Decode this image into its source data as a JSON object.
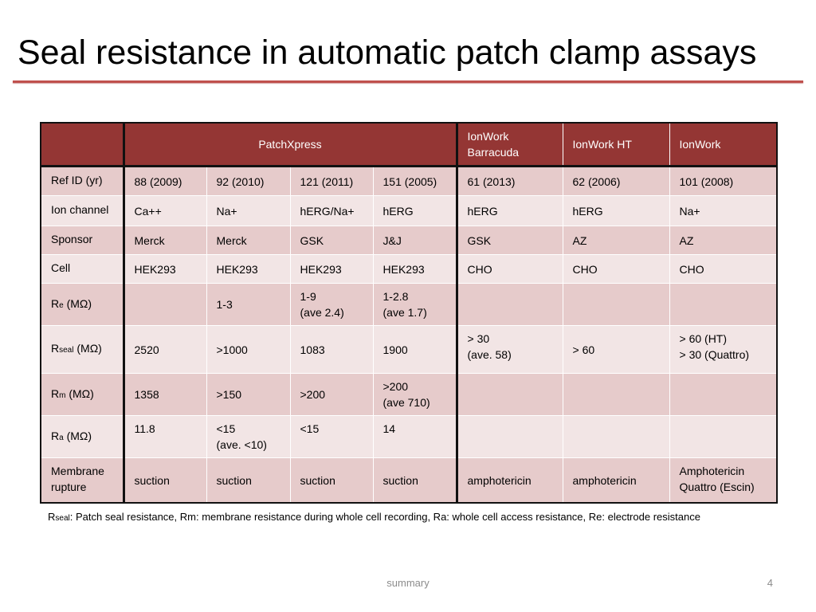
{
  "slide": {
    "title": "Seal resistance in automatic patch clamp assays",
    "footer_center": "summary",
    "page_number": "4"
  },
  "colors": {
    "title_rule": "#c0504d",
    "header_fill": "#943634",
    "row_dark": "#e6cbcb",
    "row_light": "#f2e5e5"
  },
  "table": {
    "header": {
      "blank": "",
      "patchxpress": "PatchXpress",
      "ionwork_barracuda": "IonWork\nBarracuda",
      "ionwork_ht": "IonWork HT",
      "ionwork": "IonWork"
    },
    "rows": [
      {
        "label_main": "Ref ID (yr)",
        "label_sub": "",
        "label_unit": "",
        "cells": [
          "88 (2009)",
          "92 (2010)",
          "121 (2011)",
          "151 (2005)",
          "61 (2013)",
          "62 (2006)",
          "101 (2008)"
        ]
      },
      {
        "label_main": "Ion channel",
        "label_sub": "",
        "label_unit": "",
        "cells": [
          "Ca++",
          "Na+",
          "hERG/Na+",
          "hERG",
          "hERG",
          "hERG",
          "Na+"
        ]
      },
      {
        "label_main": "Sponsor",
        "label_sub": "",
        "label_unit": "",
        "cells": [
          "Merck",
          "Merck",
          "GSK",
          "J&J",
          "GSK",
          "AZ",
          "AZ"
        ]
      },
      {
        "label_main": "Cell",
        "label_sub": "",
        "label_unit": "",
        "cells": [
          "HEK293",
          "HEK293",
          "HEK293",
          "HEK293",
          "CHO",
          "CHO",
          "CHO"
        ]
      },
      {
        "label_main": "R",
        "label_sub": "e",
        "label_unit": " (MΩ)",
        "cells": [
          "",
          "1-3",
          "1-9\n(ave 2.4)",
          "1-2.8\n(ave 1.7)",
          "",
          "",
          ""
        ]
      },
      {
        "label_main": "R",
        "label_sub": "seal",
        "label_unit": " (MΩ)",
        "cells": [
          "2520",
          ">1000",
          "1083",
          "1900",
          "> 30\n(ave. 58)",
          "> 60",
          "> 60 (HT)\n> 30 (Quattro)"
        ]
      },
      {
        "label_main": "R",
        "label_sub": "m",
        "label_unit": " (MΩ)",
        "cells": [
          "1358",
          ">150",
          ">200",
          ">200\n(ave 710)",
          "",
          "",
          ""
        ]
      },
      {
        "label_main": "R",
        "label_sub": "a",
        "label_unit": " (MΩ)",
        "cells": [
          "11.8",
          "<15\n(ave. <10)",
          "<15",
          "14",
          "",
          "",
          ""
        ]
      },
      {
        "label_main": "Membrane\nrupture",
        "label_sub": "",
        "label_unit": "",
        "cells": [
          "suction",
          "suction",
          "suction",
          "suction",
          "amphotericin",
          "amphotericin",
          "Amphotericin\nQuattro (Escin)"
        ]
      }
    ]
  },
  "footnote": {
    "prefix_main": "R",
    "prefix_sub": "seal",
    "text": ": Patch seal resistance, Rm: membrane resistance during whole cell recording, Ra: whole cell access resistance, Re: electrode resistance"
  }
}
